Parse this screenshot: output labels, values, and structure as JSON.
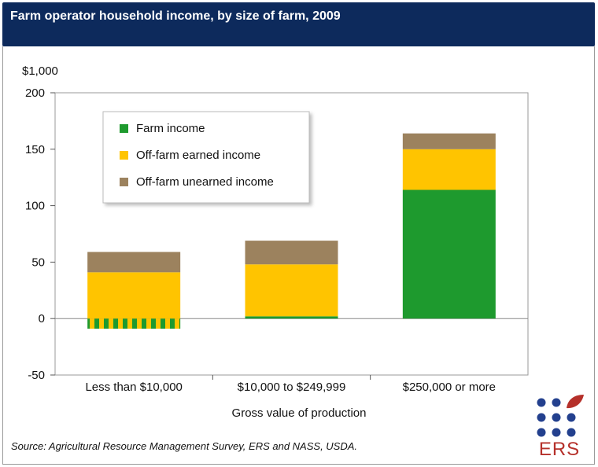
{
  "header": {
    "title": "Farm operator household income, by size of farm, 2009"
  },
  "source": "Source: Agricultural Resource Management Survey, ERS and NASS, USDA.",
  "logo": {
    "text": "ERS",
    "icon": "ers-dot-grid-leaf-icon"
  },
  "colors": {
    "header_bg": "#0d2a5c",
    "farm": "#1e9a2e",
    "earned": "#ffc400",
    "unearned": "#9c825e",
    "logo_dots": "#23408e",
    "logo_text": "#b5302a"
  },
  "chart_data": {
    "type": "bar",
    "stacked": true,
    "title": "Farm operator household income, by size of farm, 2009",
    "ylabel": "$1,000",
    "xlabel": "Gross value of production",
    "ylim": [
      -50,
      200
    ],
    "yticks": [
      -50,
      0,
      50,
      100,
      150,
      200
    ],
    "grid": false,
    "legend_position": "top-left",
    "categories": [
      "Less than $10,000",
      "$10,000 to $249,999",
      "$250,000 or more"
    ],
    "series": [
      {
        "name": "Farm income",
        "values": [
          -9,
          2,
          114
        ]
      },
      {
        "name": "Off-farm earned income",
        "values": [
          41,
          46,
          36
        ]
      },
      {
        "name": "Off-farm unearned income",
        "values": [
          18,
          21,
          14
        ]
      }
    ]
  }
}
